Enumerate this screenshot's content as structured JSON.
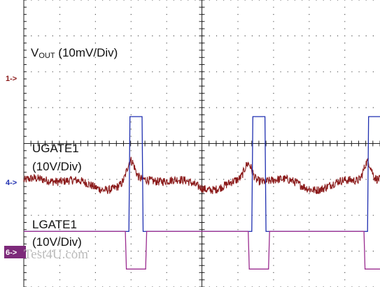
{
  "chart_data": {
    "type": "line",
    "title": "",
    "grid": true,
    "x_divisions": 10,
    "y_divisions": 8,
    "series": [
      {
        "name": "VOUT (10mV/Div)",
        "label_main": "V",
        "label_sub": "OUT",
        "label_rest": " (10mV/Div)",
        "channel_marker": "1->",
        "color": "#8b1a1a",
        "style": "noisy",
        "baseline_div": -1.1,
        "noise_div": 0.12,
        "bumps": [
          {
            "x_div": 3.0,
            "amp_div": 0.55,
            "width_div": 0.15
          },
          {
            "x_div": 6.3,
            "amp_div": 0.45,
            "width_div": 0.15
          },
          {
            "x_div": 9.65,
            "amp_div": 0.55,
            "width_div": 0.15
          }
        ]
      },
      {
        "name": "UGATE1 (10V/Div)",
        "label_line1": "UGATE1",
        "label_line2": "(10V/Div)",
        "channel_marker": "4->",
        "color": "#1f2fb0",
        "style": "pulse",
        "low_div": -2.45,
        "high_div": 0.75,
        "pulses": [
          [
            2.95,
            3.35
          ],
          [
            6.4,
            6.8
          ],
          [
            9.65,
            10.05
          ]
        ]
      },
      {
        "name": "LGATE1 (10V/Div)",
        "label_line1": "LGATE1",
        "label_line2": "(10V/Div)",
        "channel_marker": "6->",
        "color": "#9a2b8f",
        "style": "pulse_inverted",
        "low_div": -3.5,
        "high_div": -2.45,
        "pulses": [
          [
            2.85,
            3.45
          ],
          [
            6.3,
            6.9
          ],
          [
            9.55,
            10.15
          ]
        ]
      }
    ],
    "watermark": "Test4U.com"
  }
}
